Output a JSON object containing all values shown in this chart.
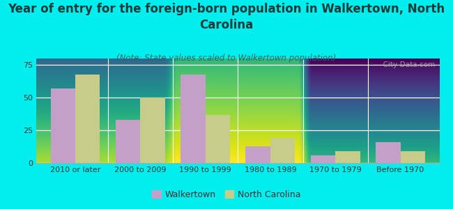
{
  "title": "Year of entry for the foreign-born population in Walkertown, North\nCarolina",
  "subtitle": "(Note: State values scaled to Walkertown population)",
  "categories": [
    "2010 or later",
    "2000 to 2009",
    "1990 to 1999",
    "1980 to 1989",
    "1970 to 1979",
    "Before 1970"
  ],
  "walkertown": [
    57,
    33,
    68,
    13,
    6,
    16
  ],
  "north_carolina": [
    68,
    50,
    37,
    19,
    9,
    9
  ],
  "walkertown_color": "#c4a0c8",
  "nc_color": "#c8cc8a",
  "background_color": "#00eeee",
  "plot_bg_top": "#e8f0e0",
  "plot_bg_bottom": "#f5f8f0",
  "ylim": [
    0,
    80
  ],
  "yticks": [
    0,
    25,
    50,
    75
  ],
  "bar_width": 0.38,
  "title_fontsize": 12,
  "subtitle_fontsize": 8.5,
  "tick_fontsize": 8,
  "legend_fontsize": 9,
  "watermark": "  City-Data.com"
}
